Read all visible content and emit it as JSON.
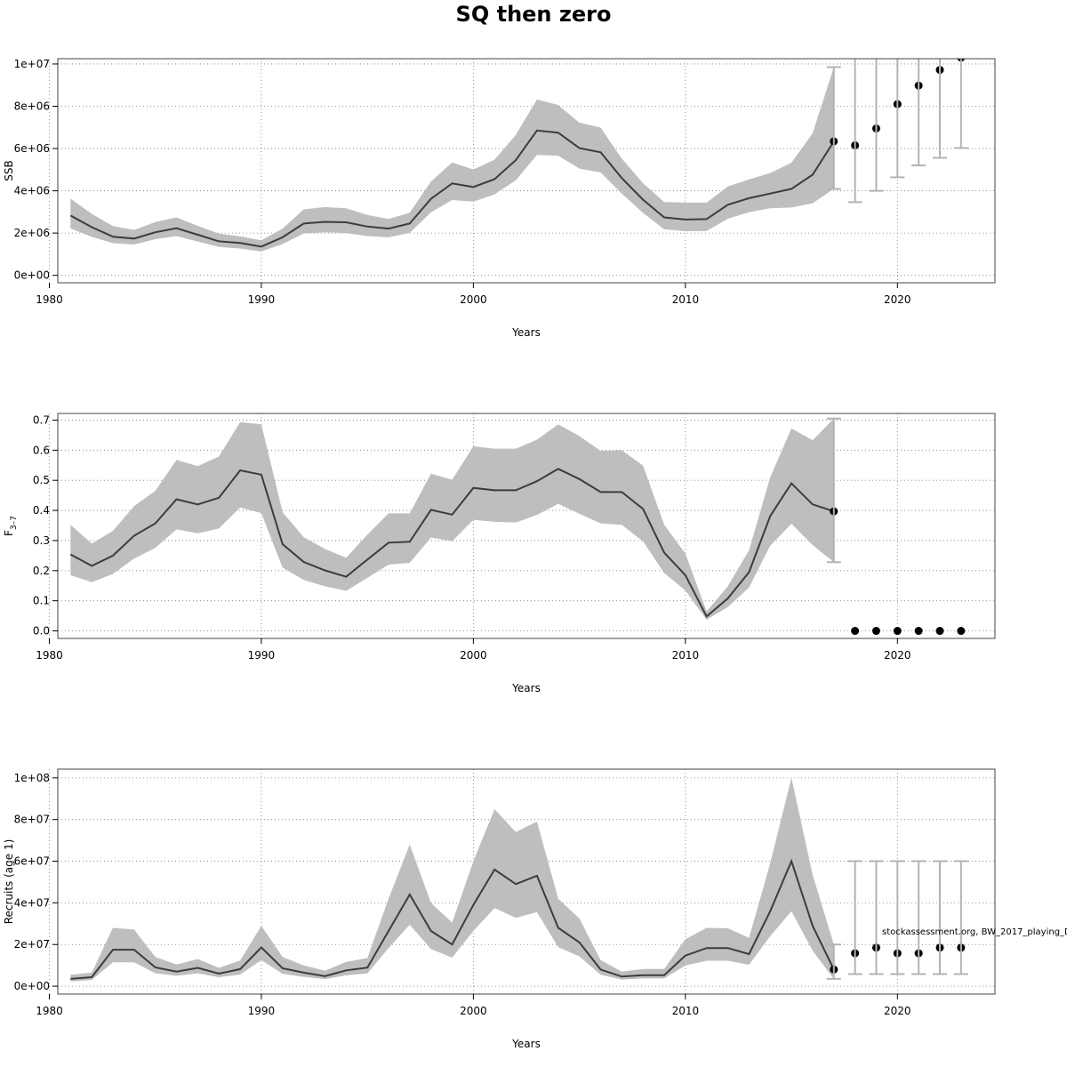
{
  "title": "SQ then zero",
  "watermark": "stockassessment.org, BW_2017_playing_D",
  "colors": {
    "band": "#bebebe",
    "line": "#3c3c3c",
    "point": "#000000",
    "errorbar": "#b3b3b3",
    "grid": "#7a7a7a",
    "frame": "#444444"
  },
  "chart_data": [
    {
      "type": "line",
      "ylabel": "SSB",
      "xlabel": "Years",
      "xlim": [
        1980.4,
        2024.6
      ],
      "ylim": [
        -350000,
        10250000
      ],
      "xticks": [
        1980,
        1990,
        2000,
        2010,
        2020
      ],
      "xtick_labels": [
        "1980",
        "1990",
        "2000",
        "2010",
        "2020"
      ],
      "yticks": [
        0,
        2000000,
        4000000,
        6000000,
        8000000,
        10000000
      ],
      "ytick_labels": [
        "0e+00",
        "2e+06",
        "4e+06",
        "6e+06",
        "8e+06",
        "1e+07"
      ],
      "grid": true,
      "x": [
        1981,
        1982,
        1983,
        1984,
        1985,
        1986,
        1987,
        1988,
        1989,
        1990,
        1991,
        1992,
        1993,
        1994,
        1995,
        1996,
        1997,
        1998,
        1999,
        2000,
        2001,
        2002,
        2003,
        2004,
        2005,
        2006,
        2007,
        2008,
        2009,
        2010,
        2011,
        2012,
        2013,
        2014,
        2015,
        2016,
        2017
      ],
      "estimate": [
        2830000,
        2280000,
        1830000,
        1740000,
        2040000,
        2230000,
        1920000,
        1610000,
        1530000,
        1360000,
        1800000,
        2450000,
        2530000,
        2510000,
        2310000,
        2210000,
        2450000,
        3620000,
        4350000,
        4180000,
        4550000,
        5450000,
        6850000,
        6750000,
        6020000,
        5820000,
        4600000,
        3580000,
        2740000,
        2640000,
        2660000,
        3340000,
        3650000,
        3870000,
        4090000,
        4760000,
        6340000
      ],
      "lower": [
        2220000,
        1820000,
        1520000,
        1460000,
        1710000,
        1860000,
        1600000,
        1340000,
        1270000,
        1130000,
        1480000,
        1980000,
        2030000,
        2000000,
        1860000,
        1800000,
        2010000,
        2980000,
        3560000,
        3490000,
        3830000,
        4500000,
        5700000,
        5660000,
        5050000,
        4870000,
        3870000,
        2950000,
        2180000,
        2090000,
        2100000,
        2680000,
        2990000,
        3170000,
        3210000,
        3410000,
        4090000
      ],
      "upper": [
        3630000,
        2910000,
        2330000,
        2150000,
        2520000,
        2740000,
        2340000,
        1970000,
        1850000,
        1660000,
        2210000,
        3120000,
        3230000,
        3170000,
        2860000,
        2670000,
        2960000,
        4440000,
        5340000,
        5010000,
        5470000,
        6640000,
        8320000,
        8060000,
        7220000,
        6990000,
        5520000,
        4360000,
        3470000,
        3440000,
        3440000,
        4200000,
        4540000,
        4840000,
        5330000,
        6720000,
        9850000
      ],
      "forecast": {
        "x": [
          2017,
          2018,
          2019,
          2020,
          2021,
          2022,
          2023
        ],
        "median": [
          6340000,
          6150000,
          6950000,
          8100000,
          8980000,
          9720000,
          10300000
        ],
        "lower": [
          4090000,
          3460000,
          4000000,
          4640000,
          5200000,
          5560000,
          6020000
        ],
        "upper": [
          9850000,
          10400000,
          10400000,
          10400000,
          10400000,
          10400000,
          10400000
        ]
      }
    },
    {
      "type": "line",
      "ylabel": "F3–7",
      "ylabel_main": "F",
      "ylabel_sub": "3–7",
      "xlabel": "Years",
      "xlim": [
        1980.4,
        2024.6
      ],
      "ylim": [
        -0.025,
        0.722
      ],
      "xticks": [
        1980,
        1990,
        2000,
        2010,
        2020
      ],
      "xtick_labels": [
        "1980",
        "1990",
        "2000",
        "2010",
        "2020"
      ],
      "yticks": [
        0,
        0.1,
        0.2,
        0.3,
        0.4,
        0.5,
        0.6,
        0.7
      ],
      "ytick_labels": [
        "0.0",
        "0.1",
        "0.2",
        "0.3",
        "0.4",
        "0.5",
        "0.6",
        "0.7"
      ],
      "grid": true,
      "x": [
        1981,
        1982,
        1983,
        1984,
        1985,
        1986,
        1987,
        1988,
        1989,
        1990,
        1991,
        1992,
        1993,
        1994,
        1995,
        1996,
        1997,
        1998,
        1999,
        2000,
        2001,
        2002,
        2003,
        2004,
        2005,
        2006,
        2007,
        2008,
        2009,
        2010,
        2011,
        2012,
        2013,
        2014,
        2015,
        2016,
        2017
      ],
      "estimate": [
        0.254,
        0.216,
        0.25,
        0.316,
        0.357,
        0.437,
        0.42,
        0.442,
        0.533,
        0.519,
        0.288,
        0.229,
        0.201,
        0.18,
        0.237,
        0.293,
        0.296,
        0.402,
        0.386,
        0.475,
        0.467,
        0.467,
        0.497,
        0.538,
        0.504,
        0.461,
        0.461,
        0.405,
        0.26,
        0.185,
        0.048,
        0.108,
        0.195,
        0.381,
        0.49,
        0.42,
        0.397
      ],
      "lower": [
        0.185,
        0.162,
        0.189,
        0.24,
        0.276,
        0.337,
        0.324,
        0.34,
        0.41,
        0.391,
        0.21,
        0.169,
        0.148,
        0.133,
        0.176,
        0.22,
        0.226,
        0.31,
        0.298,
        0.369,
        0.362,
        0.36,
        0.385,
        0.422,
        0.389,
        0.357,
        0.352,
        0.297,
        0.192,
        0.134,
        0.037,
        0.079,
        0.144,
        0.283,
        0.356,
        0.285,
        0.228
      ],
      "upper": [
        0.352,
        0.29,
        0.332,
        0.414,
        0.465,
        0.568,
        0.547,
        0.579,
        0.693,
        0.686,
        0.394,
        0.311,
        0.272,
        0.243,
        0.32,
        0.39,
        0.39,
        0.522,
        0.502,
        0.613,
        0.605,
        0.605,
        0.635,
        0.686,
        0.647,
        0.598,
        0.6,
        0.549,
        0.352,
        0.257,
        0.065,
        0.148,
        0.268,
        0.51,
        0.672,
        0.633,
        0.705
      ],
      "forecast": {
        "x": [
          2017,
          2018,
          2019,
          2020,
          2021,
          2022,
          2023
        ],
        "median": [
          0.397,
          0,
          0,
          0,
          0,
          0,
          0
        ],
        "lower": [
          0.228,
          null,
          null,
          null,
          null,
          null,
          null
        ],
        "upper": [
          0.705,
          null,
          null,
          null,
          null,
          null,
          null
        ]
      }
    },
    {
      "type": "line",
      "ylabel": "Recruits (age 1)",
      "xlabel": "Years",
      "xlim": [
        1980.4,
        2024.6
      ],
      "ylim": [
        -3800000,
        104200000
      ],
      "xticks": [
        1980,
        1990,
        2000,
        2010,
        2020
      ],
      "xtick_labels": [
        "1980",
        "1990",
        "2000",
        "2010",
        "2020"
      ],
      "yticks": [
        0,
        20000000,
        40000000,
        60000000,
        80000000,
        100000000
      ],
      "ytick_labels": [
        "0e+00",
        "2e+07",
        "4e+07",
        "6e+07",
        "8e+07",
        "1e+08"
      ],
      "grid": true,
      "x": [
        1981,
        1982,
        1983,
        1984,
        1985,
        1986,
        1987,
        1988,
        1989,
        1990,
        1991,
        1992,
        1993,
        1994,
        1995,
        1996,
        1997,
        1998,
        1999,
        2000,
        2001,
        2002,
        2003,
        2004,
        2005,
        2006,
        2007,
        2008,
        2009,
        2010,
        2011,
        2012,
        2013,
        2014,
        2015,
        2016,
        2017
      ],
      "estimate": [
        3500000,
        4300000,
        17500000,
        17500000,
        9000000,
        7000000,
        8800000,
        6000000,
        8200000,
        18600000,
        8600000,
        6500000,
        4800000,
        7600000,
        8900000,
        26500000,
        44000000,
        26500000,
        20000000,
        39000000,
        56000000,
        49000000,
        53000000,
        28000000,
        21000000,
        8000000,
        4600000,
        5300000,
        5300000,
        14700000,
        18300000,
        18300000,
        15400000,
        36000000,
        60000000,
        29000000,
        8000000
      ],
      "lower": [
        2200000,
        3000000,
        11500000,
        11500000,
        6200000,
        5000000,
        6100000,
        4300000,
        5600000,
        12500000,
        5900000,
        4500000,
        3400000,
        5200000,
        6100000,
        18300000,
        29500000,
        17800000,
        13700000,
        26500000,
        37500000,
        32800000,
        35500000,
        18800000,
        14300000,
        5500000,
        3200000,
        3700000,
        3700000,
        9900000,
        12200000,
        12200000,
        10300000,
        24000000,
        36000000,
        17000000,
        3500000
      ],
      "upper": [
        5500000,
        6500000,
        28000000,
        27200000,
        14000000,
        10400000,
        13000000,
        8800000,
        12300000,
        29000000,
        14000000,
        10000000,
        7400000,
        11700000,
        13500000,
        42000000,
        68000000,
        40000000,
        30500000,
        60000000,
        85000000,
        74000000,
        79000000,
        42000000,
        32500000,
        12500000,
        7000000,
        8300000,
        8300000,
        22500000,
        28000000,
        27800000,
        23200000,
        59000000,
        100000000,
        53500000,
        20000000
      ],
      "forecast": {
        "x": [
          2017,
          2018,
          2019,
          2020,
          2021,
          2022,
          2023
        ],
        "median": [
          8000000,
          15800000,
          18500000,
          15800000,
          15800000,
          18500000,
          18500000
        ],
        "lower": [
          3500000,
          5800000,
          5800000,
          5800000,
          5800000,
          5800000,
          5800000
        ],
        "upper": [
          20000000,
          60000000,
          60000000,
          60000000,
          60000000,
          60000000,
          60000000
        ]
      }
    }
  ]
}
